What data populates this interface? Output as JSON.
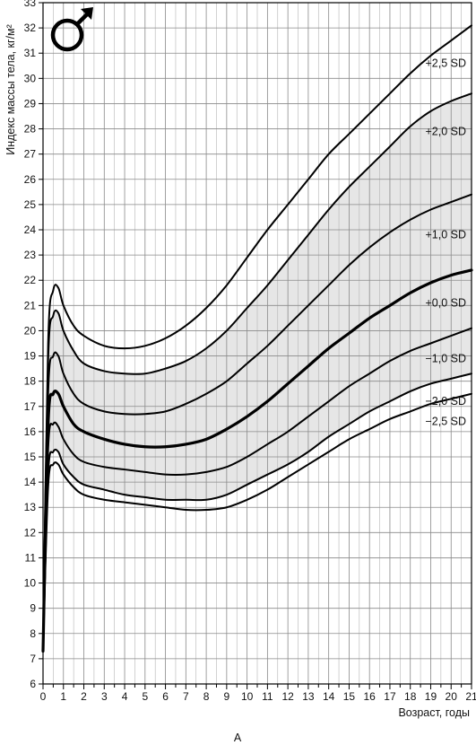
{
  "chart_data": {
    "type": "line",
    "title": "",
    "symbol": "♂",
    "xlabel": "Возраст, годы",
    "ylabel": "Индекс массы тела, кг/м²",
    "caption": "A",
    "xlim": [
      0,
      21
    ],
    "ylim": [
      6,
      33
    ],
    "xticks": [
      "0",
      "1",
      "2",
      "3",
      "4",
      "5",
      "6",
      "7",
      "8",
      "9",
      "10",
      "11",
      "12",
      "13",
      "14",
      "15",
      "16",
      "17",
      "18",
      "19",
      "20",
      "21"
    ],
    "yticks": [
      "6",
      "7",
      "8",
      "9",
      "10",
      "11",
      "12",
      "13",
      "14",
      "15",
      "16",
      "17",
      "18",
      "19",
      "20",
      "21",
      "22",
      "23",
      "24",
      "25",
      "26",
      "27",
      "28",
      "29",
      "30",
      "31",
      "32",
      "33"
    ],
    "grid": true,
    "minor_grid_per_unit_x": 2,
    "band": {
      "from": "-2,0 SD",
      "to": "+2,0 SD",
      "color": "#e6e6e6"
    },
    "x": [
      0,
      0.25,
      0.5,
      0.75,
      1,
      1.5,
      2,
      3,
      4,
      5,
      6,
      7,
      8,
      9,
      10,
      11,
      12,
      13,
      14,
      15,
      16,
      17,
      18,
      19,
      20,
      21
    ],
    "series": [
      {
        "name": "+2,5 SD",
        "values": [
          7.3,
          19.5,
          21.6,
          21.7,
          21.0,
          20.2,
          19.8,
          19.4,
          19.3,
          19.4,
          19.7,
          20.2,
          20.9,
          21.8,
          22.9,
          24.0,
          25.0,
          26.0,
          27.0,
          27.8,
          28.6,
          29.4,
          30.2,
          30.9,
          31.5,
          32.1
        ],
        "stroke": 2
      },
      {
        "name": "+2,0 SD",
        "values": [
          7.3,
          18.8,
          20.6,
          20.7,
          20.0,
          19.2,
          18.7,
          18.4,
          18.3,
          18.3,
          18.5,
          18.8,
          19.3,
          20.0,
          20.9,
          21.8,
          22.8,
          23.8,
          24.8,
          25.7,
          26.5,
          27.3,
          28.1,
          28.7,
          29.1,
          29.4
        ],
        "stroke": 2
      },
      {
        "name": "+1,0 SD",
        "values": [
          7.3,
          17.5,
          19.0,
          19.0,
          18.3,
          17.5,
          17.1,
          16.8,
          16.7,
          16.7,
          16.8,
          17.1,
          17.5,
          18.0,
          18.7,
          19.4,
          20.2,
          21.0,
          21.8,
          22.6,
          23.3,
          23.9,
          24.4,
          24.8,
          25.1,
          25.4
        ],
        "stroke": 2
      },
      {
        "name": "+0,0 SD",
        "values": [
          7.3,
          16.3,
          17.5,
          17.5,
          17.0,
          16.3,
          16.0,
          15.7,
          15.5,
          15.4,
          15.4,
          15.5,
          15.7,
          16.1,
          16.6,
          17.2,
          17.9,
          18.6,
          19.3,
          19.9,
          20.5,
          21.0,
          21.5,
          21.9,
          22.2,
          22.4
        ],
        "stroke": 3.2
      },
      {
        "name": "-1,0 SD",
        "values": [
          7.3,
          15.3,
          16.3,
          16.2,
          15.7,
          15.1,
          14.8,
          14.6,
          14.5,
          14.4,
          14.3,
          14.3,
          14.4,
          14.6,
          15.0,
          15.5,
          16.0,
          16.6,
          17.2,
          17.8,
          18.3,
          18.8,
          19.2,
          19.5,
          19.8,
          20.1
        ],
        "stroke": 2
      },
      {
        "name": "-2,0 SD",
        "values": [
          7.3,
          14.3,
          15.2,
          15.2,
          14.7,
          14.2,
          13.9,
          13.7,
          13.5,
          13.4,
          13.3,
          13.3,
          13.3,
          13.5,
          13.9,
          14.3,
          14.7,
          15.2,
          15.8,
          16.3,
          16.8,
          17.2,
          17.6,
          17.9,
          18.1,
          18.3
        ],
        "stroke": 2
      },
      {
        "name": "-2,5 SD",
        "values": [
          7.3,
          13.8,
          14.7,
          14.7,
          14.3,
          13.8,
          13.5,
          13.3,
          13.2,
          13.1,
          13.0,
          12.9,
          12.9,
          13.0,
          13.3,
          13.7,
          14.2,
          14.7,
          15.2,
          15.7,
          16.1,
          16.5,
          16.8,
          17.1,
          17.3,
          17.5
        ],
        "stroke": 2
      }
    ]
  }
}
